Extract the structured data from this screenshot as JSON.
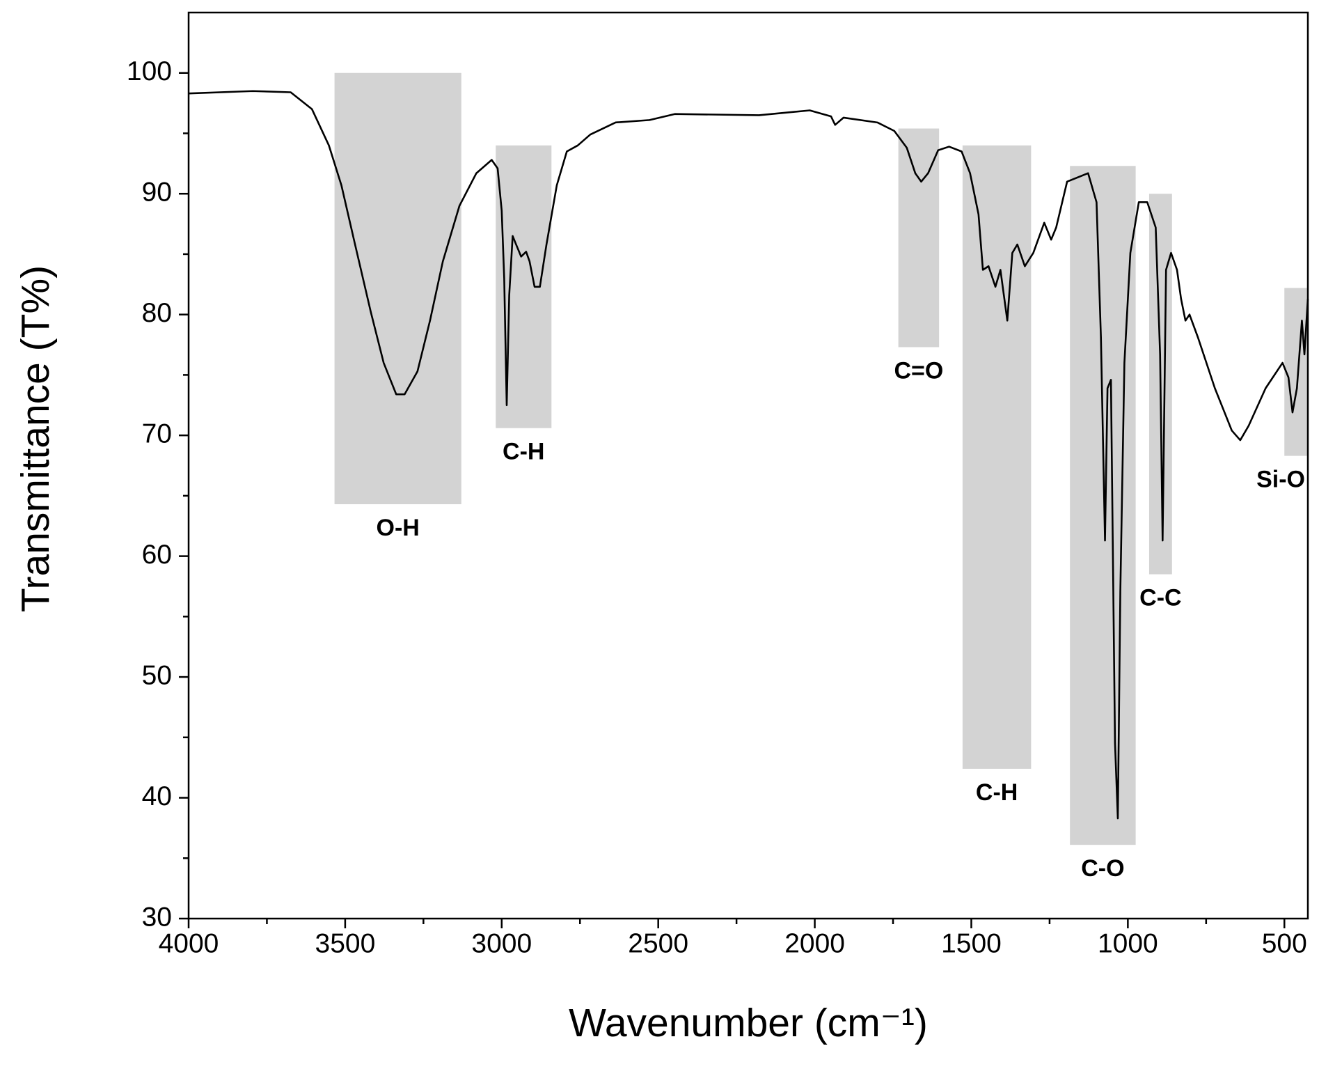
{
  "chart_data": {
    "type": "line",
    "xlabel": "Wavenumber (cm⁻¹)",
    "ylabel": "Transmittance (T%)",
    "xlim": [
      4000,
      425
    ],
    "ylim": [
      30,
      105
    ],
    "xticks": [
      4000,
      3500,
      3000,
      2500,
      2000,
      1500,
      1000,
      500
    ],
    "xminorticks": [
      3750,
      3250,
      2750,
      2250,
      1750,
      1250,
      750
    ],
    "yticks": [
      30,
      40,
      50,
      60,
      70,
      80,
      90,
      100
    ],
    "yminorticks": [
      35,
      45,
      55,
      65,
      75,
      85,
      95
    ],
    "color": "#000000",
    "band_color": "#d3d3d3",
    "x": [
      4000,
      3795,
      3674,
      3606,
      3552,
      3512,
      3472,
      3418,
      3377,
      3337,
      3310,
      3269,
      3229,
      3188,
      3135,
      3081,
      3032,
      3013,
      3000,
      2992,
      2984,
      2976,
      2965,
      2954,
      2938,
      2922,
      2911,
      2895,
      2878,
      2857,
      2824,
      2792,
      2757,
      2717,
      2636,
      2528,
      2447,
      2178,
      2016,
      1948,
      1935,
      1908,
      1800,
      1746,
      1706,
      1679,
      1660,
      1638,
      1606,
      1571,
      1531,
      1504,
      1477,
      1463,
      1445,
      1423,
      1407,
      1396,
      1385,
      1369,
      1353,
      1329,
      1302,
      1267,
      1245,
      1229,
      1194,
      1127,
      1100,
      1086,
      1073,
      1065,
      1054,
      1041,
      1032,
      1024,
      1011,
      992,
      965,
      938,
      911,
      897,
      889,
      878,
      862,
      843,
      830,
      816,
      803,
      776,
      722,
      668,
      641,
      614,
      560,
      506,
      487,
      474,
      460,
      444,
      436,
      425
    ],
    "values": [
      98.3,
      98.5,
      98.4,
      97,
      94,
      90.7,
      86.2,
      80.2,
      76,
      73.4,
      73.4,
      75.3,
      79.5,
      84.4,
      89,
      91.7,
      92.8,
      92.1,
      88.6,
      83,
      72.5,
      81.6,
      86.5,
      85.8,
      84.8,
      85.2,
      84.4,
      82.3,
      82.3,
      85.8,
      90.7,
      93.5,
      94,
      94.9,
      95.9,
      96.1,
      96.6,
      96.5,
      96.9,
      96.4,
      95.7,
      96.3,
      95.9,
      95.2,
      93.8,
      91.7,
      91,
      91.7,
      93.6,
      93.9,
      93.5,
      91.7,
      88.3,
      83.7,
      84,
      82.3,
      83.7,
      81.6,
      79.5,
      85.1,
      85.8,
      84,
      85.1,
      87.6,
      86.2,
      87.2,
      91,
      91.7,
      89.3,
      78.1,
      61.3,
      73.9,
      74.6,
      44.5,
      38.3,
      57.1,
      76,
      85.1,
      89.3,
      89.3,
      87.2,
      76.7,
      61.3,
      83.7,
      85.1,
      83.7,
      81.3,
      79.5,
      80,
      78.1,
      73.9,
      70.4,
      69.6,
      70.8,
      73.9,
      76,
      74.8,
      71.9,
      73.9,
      79.5,
      76.7,
      81.3
    ],
    "bands": [
      {
        "label": "O-H",
        "x": [
          3534,
          3129
        ],
        "y": [
          64.3,
          100
        ]
      },
      {
        "label": "C-H",
        "x": [
          3019,
          2841
        ],
        "y": [
          70.6,
          94
        ]
      },
      {
        "label": "C=O",
        "x": [
          1733,
          1603
        ],
        "y": [
          77.3,
          95.4
        ]
      },
      {
        "label": "C-H",
        "x": [
          1528,
          1309
        ],
        "y": [
          42.4,
          94
        ]
      },
      {
        "label": "C-O",
        "x": [
          1185,
          975
        ],
        "y": [
          36.1,
          92.3
        ]
      },
      {
        "label": "C-C",
        "x": [
          932,
          859
        ],
        "y": [
          58.5,
          90
        ]
      },
      {
        "label": "Si-O",
        "x": [
          500,
          425
        ],
        "y": [
          68.3,
          82.2
        ]
      }
    ]
  }
}
